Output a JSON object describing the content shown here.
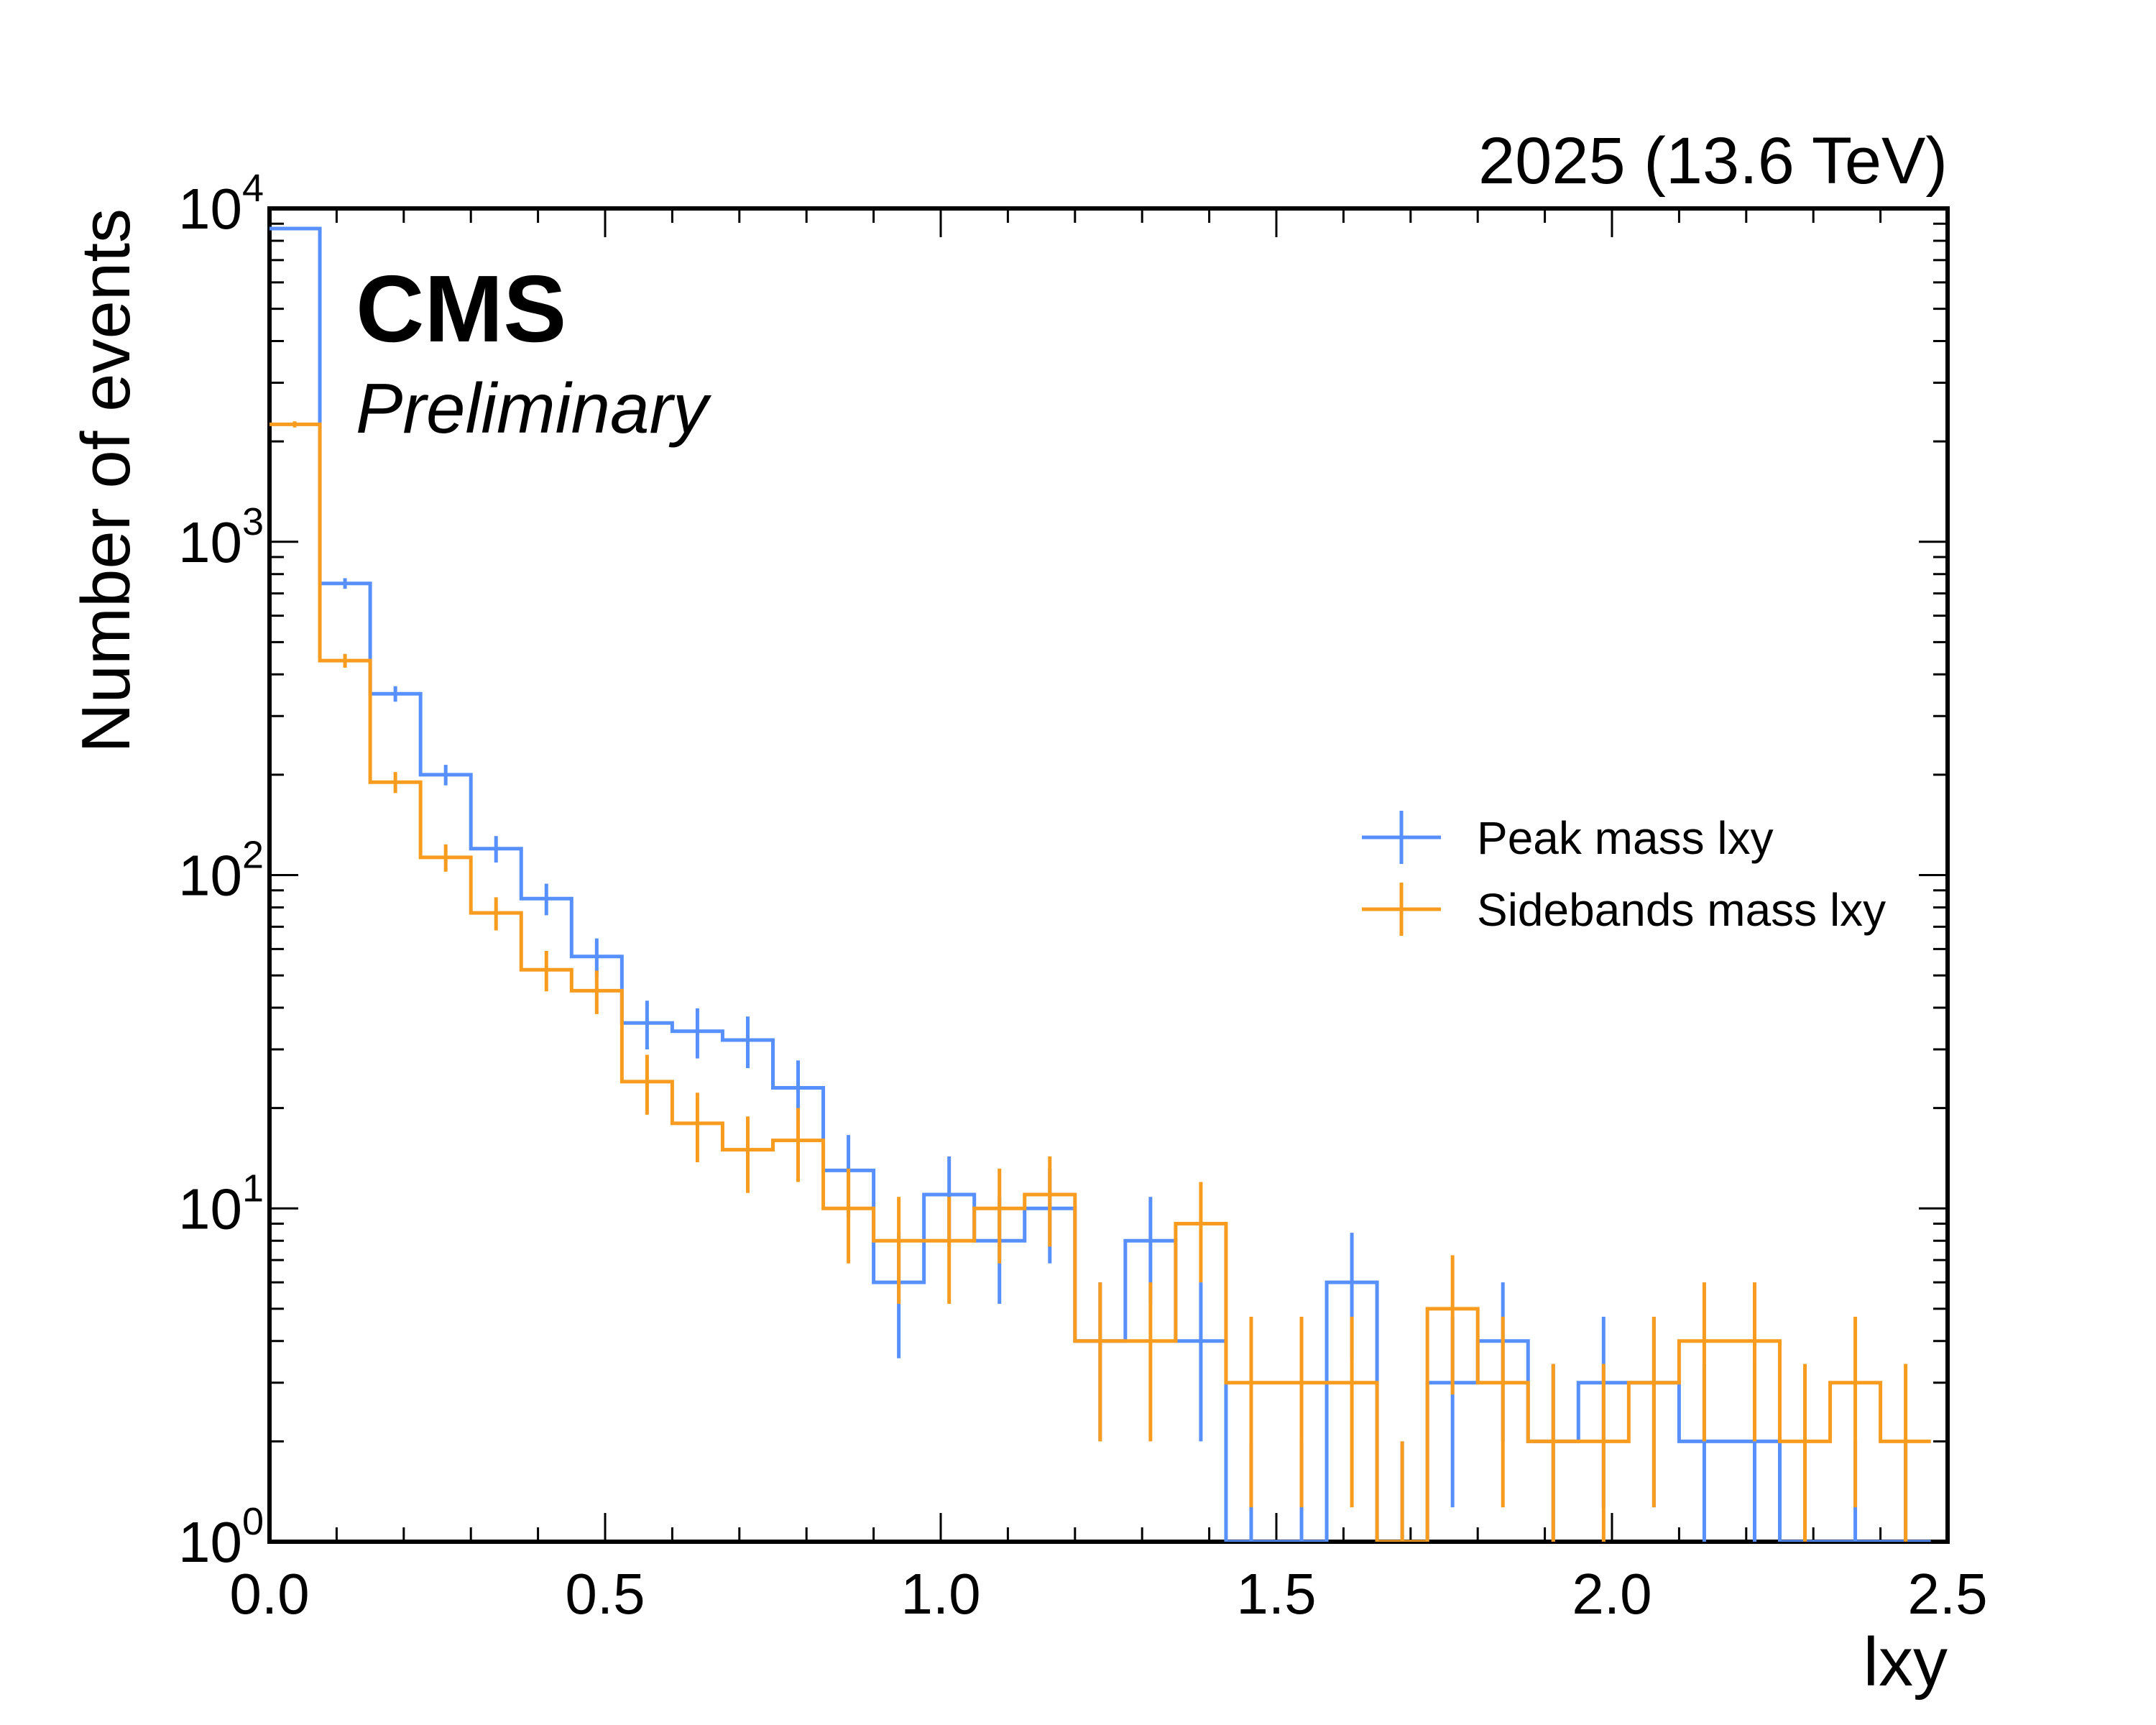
{
  "chart_data": {
    "type": "histogram-step",
    "energy_label": "2025 (13.6 TeV)",
    "experiment": "CMS",
    "status": "Preliminary",
    "xlabel": "lxy",
    "ylabel": "Number of events",
    "xlim": [
      0.0,
      2.5
    ],
    "ylim": [
      1,
      10000
    ],
    "yscale": "log",
    "grid": false,
    "legend_position": "center-right",
    "x_ticks": [
      "0.0",
      "0.5",
      "1.0",
      "1.5",
      "2.0",
      "2.5"
    ],
    "y_ticks": [
      {
        "base": "10",
        "exp": "0"
      },
      {
        "base": "10",
        "exp": "1"
      },
      {
        "base": "10",
        "exp": "2"
      },
      {
        "base": "10",
        "exp": "3"
      },
      {
        "base": "10",
        "exp": "4"
      }
    ],
    "bin_width": 0.075,
    "series": [
      {
        "name": "Peak mass lxy",
        "color": "#5790fc",
        "values": [
          8700,
          750,
          350,
          200,
          120,
          85,
          57,
          36,
          34,
          32,
          23,
          13,
          6,
          11,
          8,
          10,
          4,
          8,
          4,
          1,
          1,
          6,
          1,
          3,
          4,
          2,
          3,
          3,
          2,
          2,
          1,
          1,
          1
        ]
      },
      {
        "name": "Sidebands mass lxy",
        "color": "#f89c20",
        "values": [
          2250,
          440,
          190,
          113,
          77,
          52,
          45,
          24,
          18,
          15,
          16,
          10,
          8,
          8,
          10,
          11,
          4,
          4,
          9,
          3,
          3,
          3,
          1,
          5,
          3,
          2,
          2,
          3,
          4,
          4,
          2,
          3,
          2
        ]
      }
    ]
  }
}
